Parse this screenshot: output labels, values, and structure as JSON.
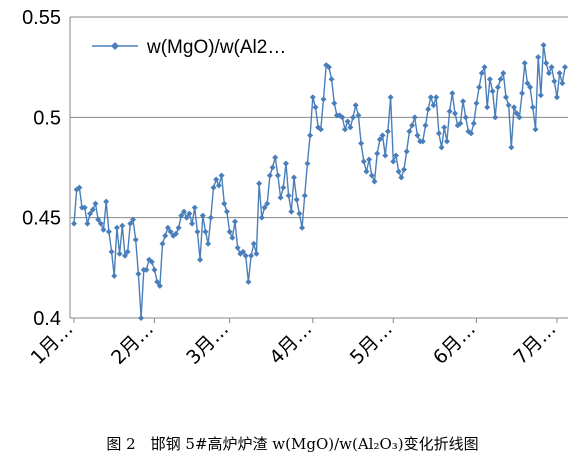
{
  "chart_data": {
    "type": "line",
    "ylim": [
      0.4,
      0.55
    ],
    "y_ticks": [
      "0.4",
      "0.45",
      "0.5",
      "0.55"
    ],
    "x_tick_labels": [
      "1月…",
      "2月…",
      "3月…",
      "4月…",
      "5月…",
      "6月…",
      "7月…"
    ],
    "grid": "horizontal",
    "legend_position": "top-left",
    "series": [
      {
        "name": "w(MgO)/w(Al2…",
        "color": "#4A7EBB",
        "values": [
          0.447,
          0.464,
          0.465,
          0.455,
          0.455,
          0.447,
          0.452,
          0.454,
          0.457,
          0.449,
          0.447,
          0.444,
          0.458,
          0.443,
          0.433,
          0.421,
          0.445,
          0.432,
          0.446,
          0.431,
          0.433,
          0.447,
          0.449,
          0.439,
          0.422,
          0.4,
          0.424,
          0.424,
          0.429,
          0.428,
          0.424,
          0.418,
          0.416,
          0.437,
          0.441,
          0.445,
          0.443,
          0.441,
          0.442,
          0.445,
          0.451,
          0.453,
          0.45,
          0.452,
          0.447,
          0.455,
          0.443,
          0.429,
          0.451,
          0.443,
          0.437,
          0.45,
          0.465,
          0.469,
          0.466,
          0.471,
          0.457,
          0.453,
          0.443,
          0.44,
          0.448,
          0.435,
          0.432,
          0.433,
          0.431,
          0.418,
          0.431,
          0.437,
          0.432,
          0.467,
          0.45,
          0.455,
          0.457,
          0.471,
          0.475,
          0.48,
          0.471,
          0.46,
          0.465,
          0.477,
          0.461,
          0.453,
          0.47,
          0.459,
          0.452,
          0.445,
          0.461,
          0.477,
          0.491,
          0.51,
          0.505,
          0.495,
          0.494,
          0.509,
          0.526,
          0.525,
          0.519,
          0.507,
          0.501,
          0.501,
          0.5,
          0.494,
          0.498,
          0.495,
          0.5,
          0.506,
          0.501,
          0.487,
          0.478,
          0.473,
          0.479,
          0.471,
          0.468,
          0.482,
          0.489,
          0.491,
          0.481,
          0.493,
          0.51,
          0.478,
          0.481,
          0.473,
          0.47,
          0.474,
          0.483,
          0.493,
          0.496,
          0.5,
          0.491,
          0.488,
          0.488,
          0.496,
          0.504,
          0.51,
          0.506,
          0.51,
          0.492,
          0.485,
          0.495,
          0.488,
          0.503,
          0.512,
          0.502,
          0.496,
          0.497,
          0.508,
          0.5,
          0.493,
          0.492,
          0.497,
          0.507,
          0.515,
          0.522,
          0.525,
          0.505,
          0.519,
          0.513,
          0.5,
          0.515,
          0.519,
          0.522,
          0.51,
          0.506,
          0.485,
          0.505,
          0.502,
          0.5,
          0.512,
          0.527,
          0.517,
          0.515,
          0.505,
          0.494,
          0.53,
          0.511,
          0.536,
          0.527,
          0.522,
          0.525,
          0.518,
          0.51,
          0.522,
          0.517,
          0.525
        ]
      }
    ]
  },
  "caption": "图 2　邯钢 5#高炉炉渣 w(MgO)/w(Al₂O₃)变化折线图"
}
